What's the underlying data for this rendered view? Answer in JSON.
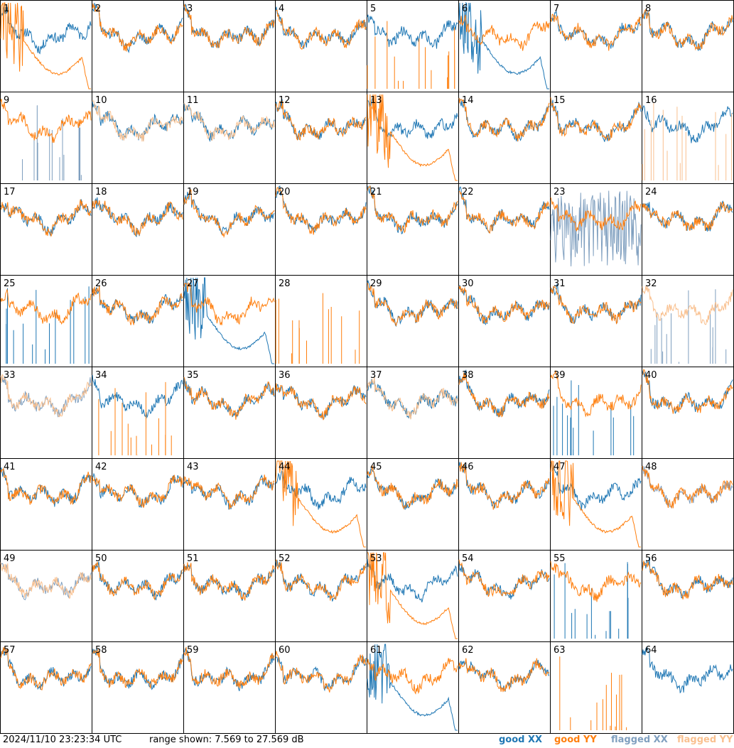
{
  "colors": {
    "good_xx": "#1f77b4",
    "good_yy": "#ff7f0e",
    "flagged_xx": "#7f9fbf",
    "flagged_yy": "#f9c08f",
    "border": "#000000"
  },
  "footer": {
    "timestamp": "2024/11/10 23:23:34 UTC",
    "range": "range shown: 7.569 to 27.569 dB"
  },
  "legend": {
    "good_xx": "good XX",
    "good_yy": "good YY",
    "flagged_xx": "flagged XX",
    "flagged_yy": "flagged YY"
  },
  "chart_data": {
    "type": "line",
    "ylim": [
      7.569,
      27.569
    ],
    "grid_rows": 8,
    "grid_cols": 8,
    "series_names": [
      "good XX",
      "good YY",
      "flagged XX",
      "flagged YY"
    ],
    "panels": [
      {
        "label": "1",
        "xx": "good",
        "yy": "good",
        "shape_xx": "normal",
        "shape_yy": "decay"
      },
      {
        "label": "2",
        "xx": "good",
        "yy": "good",
        "shape_xx": "normal",
        "shape_yy": "normal"
      },
      {
        "label": "3",
        "xx": "good",
        "yy": "good",
        "shape_xx": "normal",
        "shape_yy": "normal"
      },
      {
        "label": "4",
        "xx": "good",
        "yy": "good",
        "shape_xx": "normal",
        "shape_yy": "normal"
      },
      {
        "label": "5",
        "xx": "good",
        "yy": "good",
        "shape_xx": "normal",
        "shape_yy": "spikes"
      },
      {
        "label": "6",
        "xx": "good",
        "yy": "good",
        "shape_xx": "decay",
        "shape_yy": "normal"
      },
      {
        "label": "7",
        "xx": "good",
        "yy": "good",
        "shape_xx": "normal",
        "shape_yy": "normal"
      },
      {
        "label": "8",
        "xx": "good",
        "yy": "good",
        "shape_xx": "normal",
        "shape_yy": "normal"
      },
      {
        "label": "9",
        "xx": "flagged",
        "yy": "good",
        "shape_xx": "spikes",
        "shape_yy": "normal"
      },
      {
        "label": "10",
        "xx": "good",
        "yy": "flagged",
        "shape_xx": "normal",
        "shape_yy": "normal"
      },
      {
        "label": "11",
        "xx": "good",
        "yy": "flagged",
        "shape_xx": "normal",
        "shape_yy": "normal"
      },
      {
        "label": "12",
        "xx": "good",
        "yy": "good",
        "shape_xx": "normal",
        "shape_yy": "normal"
      },
      {
        "label": "13",
        "xx": "good",
        "yy": "good",
        "shape_xx": "normal",
        "shape_yy": "decay"
      },
      {
        "label": "14",
        "xx": "good",
        "yy": "good",
        "shape_xx": "normal",
        "shape_yy": "normal"
      },
      {
        "label": "15",
        "xx": "good",
        "yy": "good",
        "shape_xx": "normal",
        "shape_yy": "normal"
      },
      {
        "label": "16",
        "xx": "good",
        "yy": "flagged",
        "shape_xx": "normal",
        "shape_yy": "spikes"
      },
      {
        "label": "17",
        "xx": "good",
        "yy": "good",
        "shape_xx": "normal",
        "shape_yy": "normal"
      },
      {
        "label": "18",
        "xx": "good",
        "yy": "good",
        "shape_xx": "normal",
        "shape_yy": "normal"
      },
      {
        "label": "19",
        "xx": "good",
        "yy": "good",
        "shape_xx": "normal",
        "shape_yy": "normal"
      },
      {
        "label": "20",
        "xx": "good",
        "yy": "good",
        "shape_xx": "normal",
        "shape_yy": "normal"
      },
      {
        "label": "21",
        "xx": "good",
        "yy": "good",
        "shape_xx": "normal",
        "shape_yy": "normal"
      },
      {
        "label": "22",
        "xx": "good",
        "yy": "good",
        "shape_xx": "normal",
        "shape_yy": "normal"
      },
      {
        "label": "23",
        "xx": "flagged",
        "yy": "good",
        "shape_xx": "noisy",
        "shape_yy": "normal"
      },
      {
        "label": "24",
        "xx": "good",
        "yy": "good",
        "shape_xx": "normal",
        "shape_yy": "normal"
      },
      {
        "label": "25",
        "xx": "good",
        "yy": "good",
        "shape_xx": "spikes",
        "shape_yy": "normal"
      },
      {
        "label": "26",
        "xx": "good",
        "yy": "good",
        "shape_xx": "normal",
        "shape_yy": "normal"
      },
      {
        "label": "27",
        "xx": "good",
        "yy": "good",
        "shape_xx": "decay",
        "shape_yy": "normal"
      },
      {
        "label": "28",
        "xx": "good",
        "yy": "good",
        "shape_xx": "none",
        "shape_yy": "spikes"
      },
      {
        "label": "29",
        "xx": "good",
        "yy": "good",
        "shape_xx": "normal",
        "shape_yy": "normal"
      },
      {
        "label": "30",
        "xx": "good",
        "yy": "good",
        "shape_xx": "normal",
        "shape_yy": "normal"
      },
      {
        "label": "31",
        "xx": "good",
        "yy": "good",
        "shape_xx": "normal",
        "shape_yy": "normal"
      },
      {
        "label": "32",
        "xx": "flagged",
        "yy": "flagged",
        "shape_xx": "spikes",
        "shape_yy": "normal"
      },
      {
        "label": "33",
        "xx": "flagged",
        "yy": "flagged",
        "shape_xx": "normal",
        "shape_yy": "normal"
      },
      {
        "label": "34",
        "xx": "good",
        "yy": "good",
        "shape_xx": "normal",
        "shape_yy": "spikes"
      },
      {
        "label": "35",
        "xx": "good",
        "yy": "good",
        "shape_xx": "normal",
        "shape_yy": "normal"
      },
      {
        "label": "36",
        "xx": "good",
        "yy": "good",
        "shape_xx": "normal",
        "shape_yy": "normal"
      },
      {
        "label": "37",
        "xx": "good",
        "yy": "flagged",
        "shape_xx": "normal",
        "shape_yy": "normal"
      },
      {
        "label": "38",
        "xx": "good",
        "yy": "good",
        "shape_xx": "normal",
        "shape_yy": "normal"
      },
      {
        "label": "39",
        "xx": "good",
        "yy": "good",
        "shape_xx": "spikes",
        "shape_yy": "normal"
      },
      {
        "label": "40",
        "xx": "good",
        "yy": "good",
        "shape_xx": "normal",
        "shape_yy": "normal"
      },
      {
        "label": "41",
        "xx": "good",
        "yy": "good",
        "shape_xx": "normal",
        "shape_yy": "normal"
      },
      {
        "label": "42",
        "xx": "good",
        "yy": "good",
        "shape_xx": "normal",
        "shape_yy": "normal"
      },
      {
        "label": "43",
        "xx": "good",
        "yy": "good",
        "shape_xx": "normal",
        "shape_yy": "normal"
      },
      {
        "label": "44",
        "xx": "good",
        "yy": "good",
        "shape_xx": "normal",
        "shape_yy": "decay"
      },
      {
        "label": "45",
        "xx": "good",
        "yy": "good",
        "shape_xx": "normal",
        "shape_yy": "normal"
      },
      {
        "label": "46",
        "xx": "good",
        "yy": "good",
        "shape_xx": "normal",
        "shape_yy": "normal"
      },
      {
        "label": "47",
        "xx": "good",
        "yy": "good",
        "shape_xx": "normal",
        "shape_yy": "decay"
      },
      {
        "label": "48",
        "xx": "flagged",
        "yy": "good",
        "shape_xx": "normal",
        "shape_yy": "normal"
      },
      {
        "label": "49",
        "xx": "flagged",
        "yy": "flagged",
        "shape_xx": "normal",
        "shape_yy": "normal"
      },
      {
        "label": "50",
        "xx": "good",
        "yy": "good",
        "shape_xx": "normal",
        "shape_yy": "normal"
      },
      {
        "label": "51",
        "xx": "good",
        "yy": "good",
        "shape_xx": "normal",
        "shape_yy": "normal"
      },
      {
        "label": "52",
        "xx": "good",
        "yy": "good",
        "shape_xx": "normal",
        "shape_yy": "normal"
      },
      {
        "label": "53",
        "xx": "good",
        "yy": "good",
        "shape_xx": "normal",
        "shape_yy": "decay"
      },
      {
        "label": "54",
        "xx": "good",
        "yy": "good",
        "shape_xx": "normal",
        "shape_yy": "normal"
      },
      {
        "label": "55",
        "xx": "good",
        "yy": "good",
        "shape_xx": "spikes",
        "shape_yy": "normal"
      },
      {
        "label": "56",
        "xx": "good",
        "yy": "good",
        "shape_xx": "normal",
        "shape_yy": "normal"
      },
      {
        "label": "57",
        "xx": "good",
        "yy": "good",
        "shape_xx": "normal",
        "shape_yy": "normal"
      },
      {
        "label": "58",
        "xx": "good",
        "yy": "good",
        "shape_xx": "normal",
        "shape_yy": "normal"
      },
      {
        "label": "59",
        "xx": "good",
        "yy": "good",
        "shape_xx": "normal",
        "shape_yy": "normal"
      },
      {
        "label": "60",
        "xx": "good",
        "yy": "good",
        "shape_xx": "normal",
        "shape_yy": "normal"
      },
      {
        "label": "61",
        "xx": "good",
        "yy": "good",
        "shape_xx": "decay",
        "shape_yy": "normal"
      },
      {
        "label": "62",
        "xx": "good",
        "yy": "good",
        "shape_xx": "normal",
        "shape_yy": "normal"
      },
      {
        "label": "63",
        "xx": "good",
        "yy": "good",
        "shape_xx": "none",
        "shape_yy": "spikes"
      },
      {
        "label": "64",
        "xx": "good",
        "yy": "good",
        "shape_xx": "normal",
        "shape_yy": "none"
      }
    ]
  }
}
